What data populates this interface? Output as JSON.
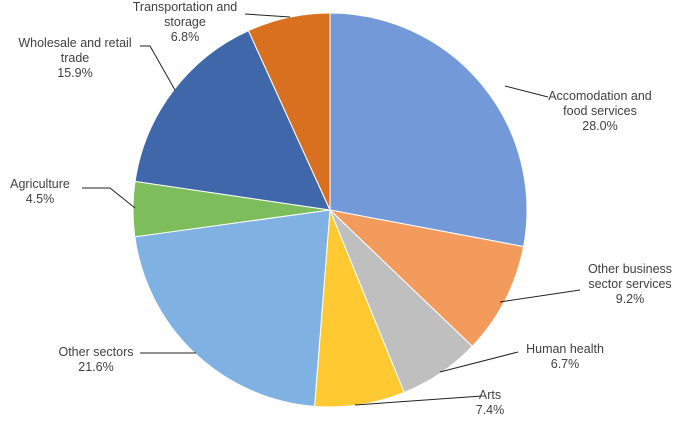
{
  "chart_data": {
    "type": "pie",
    "categories": [
      "Accomodation and food services",
      "Other business sector services",
      "Human health",
      "Arts",
      "Other sectors",
      "Agriculture",
      "Wholesale and retail trade",
      "Transportation and storage"
    ],
    "values": [
      28.0,
      9.2,
      6.7,
      7.4,
      21.6,
      4.5,
      15.9,
      6.8
    ],
    "value_labels": [
      "28.0%",
      "9.2%",
      "6.7%",
      "7.4%",
      "21.6%",
      "4.5%",
      "15.9%",
      "6.8%"
    ],
    "colors": [
      "#7499d8",
      "#f39b5c",
      "#bfbfbf",
      "#ffc932",
      "#7fb2e3",
      "#7dbd5c",
      "#3f67aa",
      "#d8701f"
    ]
  }
}
